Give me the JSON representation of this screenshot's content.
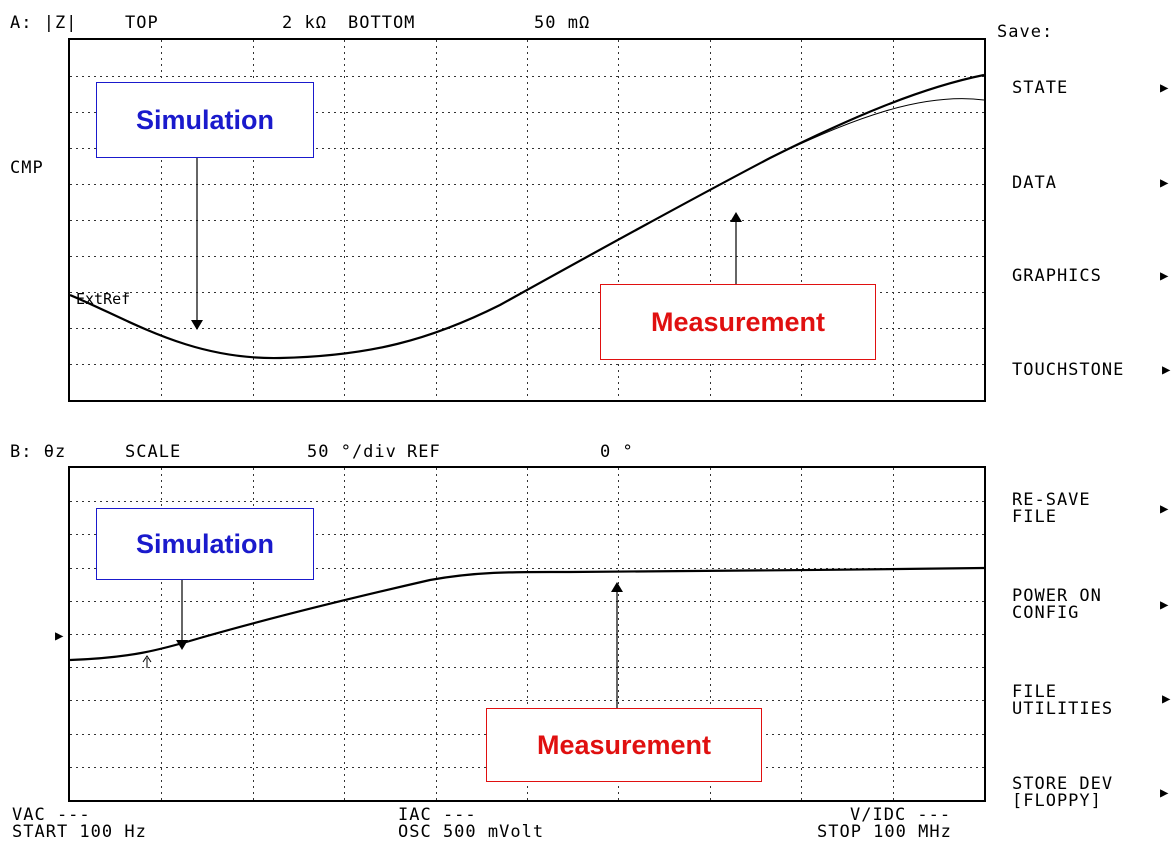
{
  "traceA": {
    "label": "A: |Z|",
    "top_label": "TOP",
    "top_value": "2 kΩ",
    "bottom_label": "BOTTOM",
    "bottom_value": "50 mΩ",
    "cmp_label": "CMP",
    "extref_label": "ExtRef",
    "callouts": {
      "simulation": "Simulation",
      "measurement": "Measurement"
    }
  },
  "traceB": {
    "label": "B: θz",
    "scale_label": "SCALE",
    "scale_value": "50 °/div",
    "ref_label": "REF",
    "ref_value": "0 °",
    "callouts": {
      "simulation": "Simulation",
      "measurement": "Measurement"
    }
  },
  "menu": {
    "title": "Save:",
    "items": [
      {
        "line1": "STATE",
        "line2": ""
      },
      {
        "line1": "DATA",
        "line2": ""
      },
      {
        "line1": "GRAPHICS",
        "line2": ""
      },
      {
        "line1": "TOUCHSTONE",
        "line2": ""
      },
      {
        "line1": "RE-SAVE",
        "line2": "FILE"
      },
      {
        "line1": "POWER ON",
        "line2": "CONFIG"
      },
      {
        "line1": "FILE",
        "line2": "UTILITIES"
      },
      {
        "line1": "STORE DEV",
        "line2": "[FLOPPY]"
      }
    ]
  },
  "footer": {
    "vac": "VAC ---",
    "start": "START 100 Hz",
    "iac": "IAC ---",
    "osc": "OSC 500 mVolt",
    "vidc": "V/IDC ---",
    "stop": "STOP 100 MHz"
  },
  "colors": {
    "simulation": "#1a1acc",
    "measurement": "#e01010"
  }
}
